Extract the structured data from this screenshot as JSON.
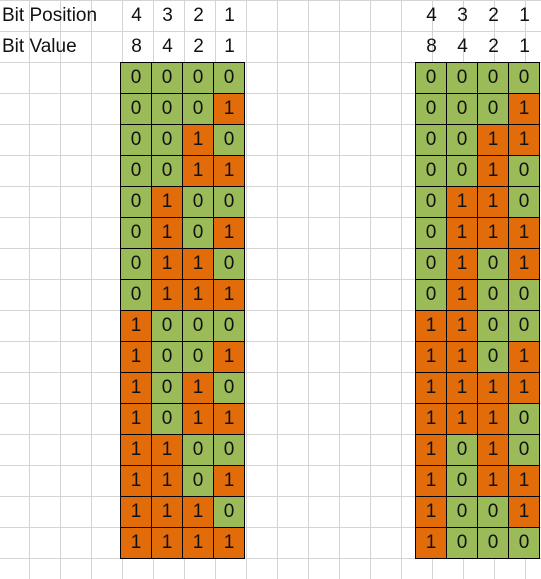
{
  "row_labels": {
    "bit_position": "Bit Position",
    "bit_value": "Bit Value"
  },
  "bit_positions": [
    "4",
    "3",
    "2",
    "1"
  ],
  "bit_values": [
    "8",
    "4",
    "2",
    "1"
  ],
  "colors": {
    "one": "#e26b0a",
    "zero": "#9bbb59",
    "grid": "#d4d4d4"
  },
  "left_table": [
    [
      "0",
      "0",
      "0",
      "0"
    ],
    [
      "0",
      "0",
      "0",
      "1"
    ],
    [
      "0",
      "0",
      "1",
      "0"
    ],
    [
      "0",
      "0",
      "1",
      "1"
    ],
    [
      "0",
      "1",
      "0",
      "0"
    ],
    [
      "0",
      "1",
      "0",
      "1"
    ],
    [
      "0",
      "1",
      "1",
      "0"
    ],
    [
      "0",
      "1",
      "1",
      "1"
    ],
    [
      "1",
      "0",
      "0",
      "0"
    ],
    [
      "1",
      "0",
      "0",
      "1"
    ],
    [
      "1",
      "0",
      "1",
      "0"
    ],
    [
      "1",
      "0",
      "1",
      "1"
    ],
    [
      "1",
      "1",
      "0",
      "0"
    ],
    [
      "1",
      "1",
      "0",
      "1"
    ],
    [
      "1",
      "1",
      "1",
      "0"
    ],
    [
      "1",
      "1",
      "1",
      "1"
    ]
  ],
  "right_table": [
    [
      "0",
      "0",
      "0",
      "0"
    ],
    [
      "0",
      "0",
      "0",
      "1"
    ],
    [
      "0",
      "0",
      "1",
      "1"
    ],
    [
      "0",
      "0",
      "1",
      "0"
    ],
    [
      "0",
      "1",
      "1",
      "0"
    ],
    [
      "0",
      "1",
      "1",
      "1"
    ],
    [
      "0",
      "1",
      "0",
      "1"
    ],
    [
      "0",
      "1",
      "0",
      "0"
    ],
    [
      "1",
      "1",
      "0",
      "0"
    ],
    [
      "1",
      "1",
      "0",
      "1"
    ],
    [
      "1",
      "1",
      "1",
      "1"
    ],
    [
      "1",
      "1",
      "1",
      "0"
    ],
    [
      "1",
      "0",
      "1",
      "0"
    ],
    [
      "1",
      "0",
      "1",
      "1"
    ],
    [
      "1",
      "0",
      "0",
      "1"
    ],
    [
      "1",
      "0",
      "0",
      "0"
    ]
  ]
}
